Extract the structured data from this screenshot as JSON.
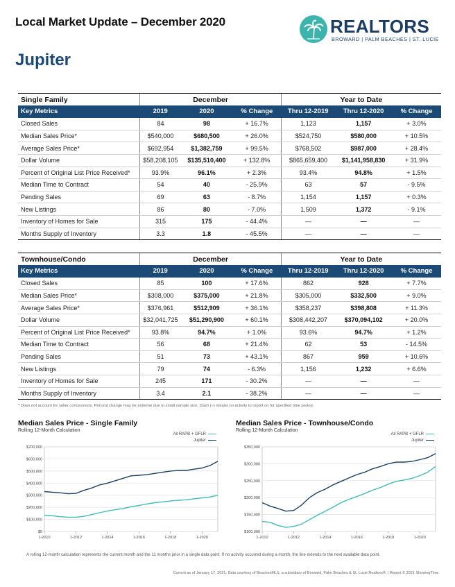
{
  "header": {
    "title": "Local Market Update – December 2020",
    "city": "Jupiter",
    "logo_word": "REALTORS",
    "logo_sub": "BROWARD | PALM BEACHES | ST. LUCIE",
    "logo_icon": "palm-tree-icon",
    "accent": "#1b4a76",
    "teal": "#3bb4ad"
  },
  "columns": {
    "group_month": "December",
    "group_ytd": "Year to Date",
    "key_metrics": "Key Metrics",
    "c1": "2019",
    "c2": "2020",
    "c3": "% Change",
    "c4": "Thru 12-2019",
    "c5": "Thru 12-2020",
    "c6": "% Change"
  },
  "single_family": {
    "label": "Single Family",
    "rows": [
      [
        "Closed Sales",
        "84",
        "98",
        "+ 16.7%",
        "1,123",
        "1,157",
        "+ 3.0%"
      ],
      [
        "Median Sales Price*",
        "$540,000",
        "$680,500",
        "+ 26.0%",
        "$524,750",
        "$580,000",
        "+ 10.5%"
      ],
      [
        "Average Sales Price*",
        "$692,954",
        "$1,382,759",
        "+ 99.5%",
        "$768,502",
        "$987,000",
        "+ 28.4%"
      ],
      [
        "Dollar Volume",
        "$58,208,105",
        "$135,510,400",
        "+ 132.8%",
        "$865,659,400",
        "$1,141,958,830",
        "+ 31.9%"
      ],
      [
        "Percent of Original List Price Received*",
        "93.9%",
        "96.1%",
        "+ 2.3%",
        "93.4%",
        "94.8%",
        "+ 1.5%"
      ],
      [
        "Median Time to Contract",
        "54",
        "40",
        "- 25.9%",
        "63",
        "57",
        "- 9.5%"
      ],
      [
        "Pending Sales",
        "69",
        "63",
        "- 8.7%",
        "1,154",
        "1,157",
        "+ 0.3%"
      ],
      [
        "New Listings",
        "86",
        "80",
        "- 7.0%",
        "1,509",
        "1,372",
        "- 9.1%"
      ],
      [
        "Inventory of Homes for Sale",
        "315",
        "175",
        "- 44.4%",
        "—",
        "—",
        "—"
      ],
      [
        "Months Supply of Inventory",
        "3.3",
        "1.8",
        "- 45.5%",
        "—",
        "—",
        "—"
      ]
    ]
  },
  "townhouse": {
    "label": "Townhouse/Condo",
    "rows": [
      [
        "Closed Sales",
        "85",
        "100",
        "+ 17.6%",
        "862",
        "928",
        "+ 7.7%"
      ],
      [
        "Median Sales Price*",
        "$308,000",
        "$375,000",
        "+ 21.8%",
        "$305,000",
        "$332,500",
        "+ 9.0%"
      ],
      [
        "Average Sales Price*",
        "$376,961",
        "$512,909",
        "+ 36.1%",
        "$358,237",
        "$398,808",
        "+ 11.3%"
      ],
      [
        "Dollar Volume",
        "$32,041,725",
        "$51,290,900",
        "+ 60.1%",
        "$308,442,207",
        "$370,094,102",
        "+ 20.0%"
      ],
      [
        "Percent of Original List Price Received*",
        "93.8%",
        "94.7%",
        "+ 1.0%",
        "93.6%",
        "94.7%",
        "+ 1.2%"
      ],
      [
        "Median Time to Contract",
        "56",
        "68",
        "+ 21.4%",
        "62",
        "53",
        "- 14.5%"
      ],
      [
        "Pending Sales",
        "51",
        "73",
        "+ 43.1%",
        "867",
        "959",
        "+ 10.6%"
      ],
      [
        "New Listings",
        "79",
        "74",
        "- 6.3%",
        "1,156",
        "1,232",
        "+ 6.6%"
      ],
      [
        "Inventory of Homes for Sale",
        "245",
        "171",
        "- 30.2%",
        "—",
        "—",
        "—"
      ],
      [
        "Months Supply of Inventory",
        "3.4",
        "2.1",
        "- 38.2%",
        "—",
        "—",
        "—"
      ]
    ]
  },
  "footnote": "* Does not account for seller concessions. Percent change may be extreme due to small sample size. Dash (–) means no activity to report on for specified time period.",
  "rolling_note": "A rolling 12-month calculation represents the current month and the 11 months prior in a single data point. If no activity occurred during a month, the line extends to the next available data point.",
  "credit": "Current as of January 17, 2021. Data courtesy of BeachesMLS, a subsidiary of Broward, Palm Beaches & St. Lucie Realtors®. | Report © 2021 ShowingTime.",
  "chart_data": [
    {
      "type": "line",
      "title": "Median Sales Price - Single Family",
      "subtitle": "Rolling 12-Month Calculation",
      "x_ticks": [
        "1-2010",
        "1-2012",
        "1-2014",
        "1-2016",
        "1-2018",
        "1-2020"
      ],
      "x": [
        2010,
        2010.5,
        2011,
        2011.5,
        2012,
        2012.5,
        2013,
        2013.5,
        2014,
        2014.5,
        2015,
        2015.5,
        2016,
        2016.5,
        2017,
        2017.5,
        2018,
        2018.5,
        2019,
        2019.5,
        2020,
        2020.5,
        2021
      ],
      "ylim": [
        0,
        700000
      ],
      "y_ticks": [
        "$0",
        "$100,000",
        "$200,000",
        "$300,000",
        "$400,000",
        "$500,000",
        "$600,000",
        "$700,000"
      ],
      "grid": true,
      "legend_position": "top-right",
      "series": [
        {
          "name": "All RAPB + GFLR",
          "color": "#3bbfb7",
          "values": [
            135000,
            130000,
            122000,
            118000,
            118000,
            125000,
            140000,
            155000,
            170000,
            180000,
            190000,
            205000,
            215000,
            228000,
            238000,
            245000,
            252000,
            258000,
            262000,
            270000,
            278000,
            285000,
            300000
          ]
        },
        {
          "name": "Jupiter",
          "color": "#1b3f66",
          "values": [
            330000,
            325000,
            320000,
            312000,
            315000,
            340000,
            360000,
            385000,
            400000,
            420000,
            440000,
            460000,
            465000,
            470000,
            480000,
            490000,
            500000,
            505000,
            505000,
            515000,
            525000,
            545000,
            580000
          ]
        }
      ]
    },
    {
      "type": "line",
      "title": "Median Sales Price - Townhouse/Condo",
      "subtitle": "Rolling 12-Month Calculation",
      "x_ticks": [
        "1-2010",
        "1-2012",
        "1-2014",
        "1-2016",
        "1-2018",
        "1-2020"
      ],
      "x": [
        2010,
        2010.5,
        2011,
        2011.5,
        2012,
        2012.5,
        2013,
        2013.5,
        2014,
        2014.5,
        2015,
        2015.5,
        2016,
        2016.5,
        2017,
        2017.5,
        2018,
        2018.5,
        2019,
        2019.5,
        2020,
        2020.5,
        2021
      ],
      "ylim": [
        100000,
        350000
      ],
      "y_ticks": [
        "$100,000",
        "$150,000",
        "$200,000",
        "$250,000",
        "$300,000",
        "$350,000"
      ],
      "grid": true,
      "legend_position": "top-right",
      "series": [
        {
          "name": "All RAPB + GFLR",
          "color": "#3bbfb7",
          "values": [
            130000,
            127000,
            118000,
            112000,
            115000,
            122000,
            135000,
            148000,
            160000,
            172000,
            185000,
            195000,
            203000,
            212000,
            222000,
            230000,
            240000,
            248000,
            252000,
            257000,
            265000,
            275000,
            292000
          ]
        },
        {
          "name": "Jupiter",
          "color": "#1b3f66",
          "values": [
            185000,
            175000,
            168000,
            160000,
            162000,
            178000,
            200000,
            215000,
            225000,
            238000,
            248000,
            258000,
            268000,
            275000,
            285000,
            292000,
            300000,
            305000,
            305000,
            307000,
            312000,
            318000,
            330000
          ]
        }
      ]
    }
  ]
}
